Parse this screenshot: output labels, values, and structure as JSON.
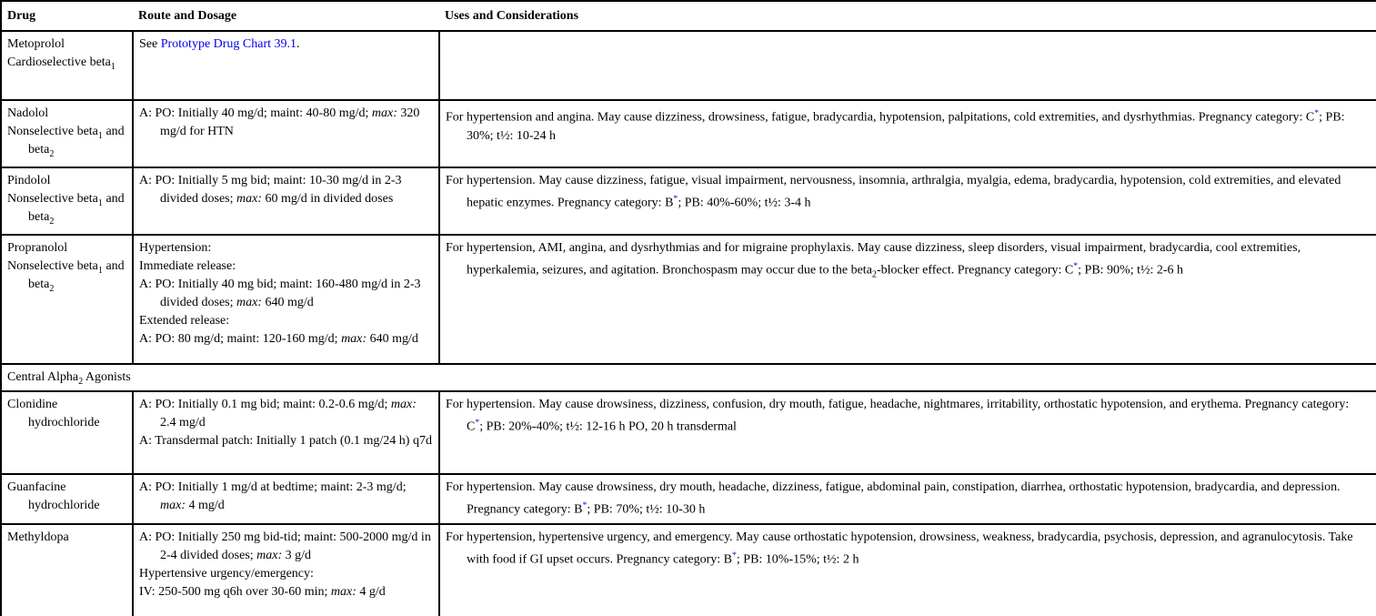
{
  "colors": {
    "link": "#0000ee",
    "text": "#000000",
    "border": "#000000",
    "background": "#ffffff"
  },
  "header": {
    "col1": "Drug",
    "col2": "Route and Dosage",
    "col3": "Uses and Considerations"
  },
  "rows": [
    {
      "type": "drug",
      "drug": [
        [
          {
            "t": "Metoprolol"
          }
        ],
        [
          {
            "t": "Cardioselective beta"
          },
          {
            "t": "1",
            "s": "sub"
          }
        ]
      ],
      "route": [
        [
          {
            "t": "See "
          },
          {
            "t": "Prototype Drug Chart 39.1",
            "s": "link",
            "n": "prototype-drug-chart-link"
          },
          {
            "t": "."
          }
        ]
      ],
      "uses": []
    },
    {
      "type": "drug",
      "drug": [
        [
          {
            "t": "Nadolol"
          }
        ],
        [
          {
            "t": "Nonselective beta"
          },
          {
            "t": "1",
            "s": "sub"
          },
          {
            "t": " and beta"
          },
          {
            "t": "2",
            "s": "sub"
          }
        ]
      ],
      "route": [
        [
          {
            "t": "A: PO: Initially 40 mg/d; maint: 40-80 mg/d; "
          },
          {
            "t": "max:",
            "s": "i"
          },
          {
            "t": " 320 mg/d for HTN"
          }
        ]
      ],
      "uses": [
        [
          {
            "t": "For hypertension and angina. May cause dizziness, drowsiness, fatigue, bradycardia, hypotension, palpitations, cold extremities, and dysrhythmias. Pregnancy category: C"
          },
          {
            "t": "*",
            "s": "star"
          },
          {
            "t": "; PB: 30%; t½: 10-24 h"
          }
        ]
      ]
    },
    {
      "type": "drug",
      "drug": [
        [
          {
            "t": "Pindolol"
          }
        ],
        [
          {
            "t": "Nonselective beta"
          },
          {
            "t": "1",
            "s": "sub"
          },
          {
            "t": " and beta"
          },
          {
            "t": "2",
            "s": "sub"
          }
        ]
      ],
      "route": [
        [
          {
            "t": "A: PO: Initially 5 mg bid; maint: 10-30 mg/d in 2-3 divided doses; "
          },
          {
            "t": "max:",
            "s": "i"
          },
          {
            "t": " 60 mg/d in divided doses"
          }
        ]
      ],
      "uses": [
        [
          {
            "t": "For hypertension. May cause dizziness, fatigue, visual impairment, nervousness, insomnia, arthralgia, myalgia, edema, bradycardia, hypotension, cold extremities, and elevated hepatic enzymes. Pregnancy category: B"
          },
          {
            "t": "*",
            "s": "star"
          },
          {
            "t": "; PB: 40%-60%; t½: 3-4 h"
          }
        ]
      ]
    },
    {
      "type": "drug",
      "drug": [
        [
          {
            "t": "Propranolol"
          }
        ],
        [
          {
            "t": "Nonselective beta"
          },
          {
            "t": "1",
            "s": "sub"
          },
          {
            "t": " and beta"
          },
          {
            "t": "2",
            "s": "sub"
          }
        ]
      ],
      "route": [
        [
          {
            "t": "Hypertension:"
          }
        ],
        [
          {
            "t": "Immediate release:"
          }
        ],
        [
          {
            "t": "A: PO: Initially 40 mg bid; maint: 160-480 mg/d in 2-3 divided doses; "
          },
          {
            "t": "max:",
            "s": "i"
          },
          {
            "t": " 640 mg/d"
          }
        ],
        [
          {
            "t": "Extended release:"
          }
        ],
        [
          {
            "t": "A: PO: 80 mg/d; maint: 120-160 mg/d; "
          },
          {
            "t": "max:",
            "s": "i"
          },
          {
            "t": " 640 mg/d"
          }
        ]
      ],
      "uses": [
        [
          {
            "t": "For hypertension, AMI, angina, and dysrhythmias and for migraine prophylaxis. May cause dizziness, sleep disorders, visual impairment, bradycardia, cool extremities, hyperkalemia, seizures, and agitation. Bronchospasm may occur due to the beta"
          },
          {
            "t": "2",
            "s": "sub"
          },
          {
            "t": "-blocker effect. Pregnancy category: C"
          },
          {
            "t": "*",
            "s": "star"
          },
          {
            "t": "; PB: 90%; t½: 2-6 h"
          }
        ]
      ]
    },
    {
      "type": "section",
      "title": [
        {
          "t": "Central Alpha"
        },
        {
          "t": "2",
          "s": "sub"
        },
        {
          "t": " Agonists"
        }
      ]
    },
    {
      "type": "drug",
      "drug": [
        [
          {
            "t": "Clonidine hydrochloride"
          }
        ]
      ],
      "route": [
        [
          {
            "t": "A: PO: Initially 0.1 mg bid; maint: 0.2-0.6 mg/d; "
          },
          {
            "t": "max:",
            "s": "i"
          },
          {
            "t": " 2.4 mg/d"
          }
        ],
        [
          {
            "t": "A: Transdermal patch: Initially 1 patch (0.1 mg/24 h) q7d"
          }
        ]
      ],
      "uses": [
        [
          {
            "t": "For hypertension. May cause drowsiness, dizziness, confusion, dry mouth, fatigue, headache, nightmares, irritability, orthostatic hypotension, and erythema. Pregnancy category: C"
          },
          {
            "t": "*",
            "s": "star"
          },
          {
            "t": "; PB: 20%-40%; t½: 12-16 h PO, 20 h transdermal"
          }
        ]
      ]
    },
    {
      "type": "drug",
      "drug": [
        [
          {
            "t": "Guanfacine hydrochloride"
          }
        ]
      ],
      "route": [
        [
          {
            "t": "A: PO: Initially 1 mg/d at bedtime; maint: 2-3 mg/d; "
          },
          {
            "t": "max:",
            "s": "i"
          },
          {
            "t": " 4 mg/d"
          }
        ]
      ],
      "uses": [
        [
          {
            "t": "For hypertension. May cause drowsiness, dry mouth, headache, dizziness, fatigue, abdominal pain, constipation, diarrhea, orthostatic hypotension, bradycardia, and depression. Pregnancy category: B"
          },
          {
            "t": "*",
            "s": "star"
          },
          {
            "t": "; PB: 70%; t½: 10-30 h"
          }
        ]
      ]
    },
    {
      "type": "drug",
      "drug": [
        [
          {
            "t": "Methyldopa"
          }
        ]
      ],
      "route": [
        [
          {
            "t": "A: PO: Initially 250 mg bid-tid; maint: 500-2000 mg/d in 2-4 divided doses; "
          },
          {
            "t": "max:",
            "s": "i"
          },
          {
            "t": " 3 g/d"
          }
        ],
        [
          {
            "t": "Hypertensive urgency/emergency:"
          }
        ],
        [
          {
            "t": "IV: 250-500 mg q6h over 30-60 min; "
          },
          {
            "t": "max:",
            "s": "i"
          },
          {
            "t": " 4 g/d"
          }
        ]
      ],
      "uses": [
        [
          {
            "t": "For hypertension, hypertensive urgency, and emergency. May cause orthostatic hypotension, drowsiness, weakness, bradycardia, psychosis, depression, and agranulocytosis. Take with food if GI upset occurs. Pregnancy category: B"
          },
          {
            "t": "*",
            "s": "star"
          },
          {
            "t": "; PB: 10%-15%; t½: 2 h"
          }
        ]
      ]
    }
  ]
}
